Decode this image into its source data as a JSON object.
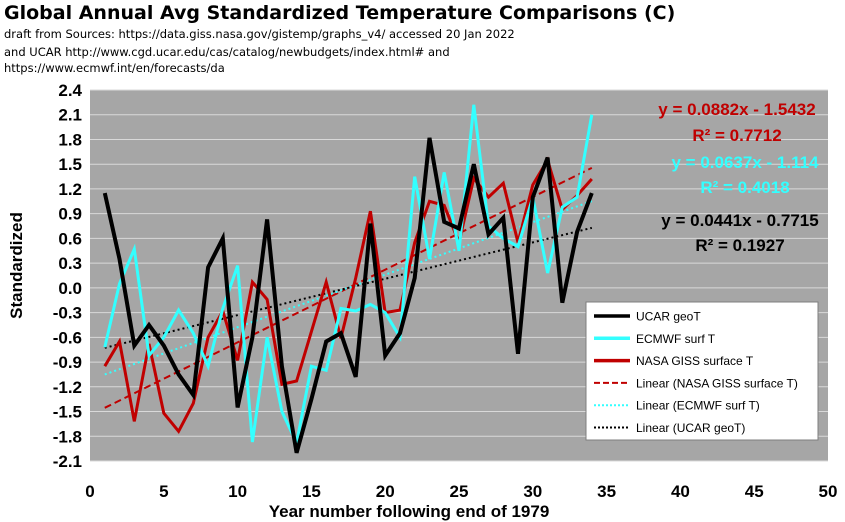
{
  "header": {
    "title": "Global Annual Avg Standardized Temperature Comparisons (C)",
    "source_line1": "draft from Sources: https://data.giss.nasa.gov/gistemp/graphs_v4/ accessed 20 Jan 2022",
    "source_line2": "and UCAR http://www.cgd.ucar.edu/cas/catalog/newbudgets/index.html#   and",
    "source_line3": "https://www.ecmwf.int/en/forecasts/da"
  },
  "colors": {
    "plot_bg": "#a6a6a6",
    "ucar": "#000000",
    "ecmwf": "#33ffff",
    "nasa": "#c00000"
  },
  "chart_data": {
    "type": "line",
    "xlabel": "Year number following end of 1979",
    "ylabel": "Standardized",
    "xlim": [
      0,
      50
    ],
    "ylim": [
      -2.1,
      2.4
    ],
    "xticks": [
      0,
      5,
      10,
      15,
      20,
      25,
      30,
      35,
      40,
      45,
      50
    ],
    "yticks": [
      -2.1,
      -1.8,
      -1.5,
      -1.2,
      -0.9,
      -0.6,
      -0.3,
      0.0,
      0.3,
      0.6,
      0.9,
      1.2,
      1.5,
      1.8,
      2.1,
      2.4
    ],
    "grid": "horizontal",
    "legend_position": "bottom-right",
    "x": [
      1,
      2,
      3,
      4,
      5,
      6,
      7,
      8,
      9,
      10,
      11,
      12,
      13,
      14,
      15,
      16,
      17,
      18,
      19,
      20,
      21,
      22,
      23,
      24,
      25,
      26,
      27,
      28,
      29,
      30,
      31,
      32,
      33,
      34
    ],
    "series": [
      {
        "name": "UCAR geoT",
        "color": "#000000",
        "values": [
          1.15,
          0.35,
          -0.7,
          -0.45,
          -0.7,
          -1.05,
          -1.3,
          0.25,
          0.6,
          -1.45,
          -0.6,
          0.83,
          -0.95,
          -2.0,
          -1.35,
          -0.65,
          -0.55,
          -1.08,
          0.78,
          -0.82,
          -0.55,
          0.12,
          1.82,
          0.8,
          0.72,
          1.5,
          0.65,
          0.85,
          -0.8,
          1.1,
          1.58,
          -0.18,
          0.68,
          1.15
        ]
      },
      {
        "name": "ECMWF surf T",
        "color": "#33ffff",
        "values": [
          -0.72,
          0.05,
          0.47,
          -0.82,
          -0.6,
          -0.27,
          -0.55,
          -0.95,
          -0.25,
          0.27,
          -1.87,
          -0.6,
          -1.5,
          -1.88,
          -0.95,
          -1.0,
          -0.25,
          -0.28,
          -0.2,
          -0.3,
          -0.6,
          1.35,
          0.35,
          1.4,
          0.45,
          2.22,
          0.75,
          0.6,
          0.5,
          1.1,
          0.18,
          0.98,
          1.1,
          2.1
        ]
      },
      {
        "name": "NASA GISS surface T",
        "color": "#c00000",
        "values": [
          -0.95,
          -0.65,
          -1.62,
          -0.68,
          -1.52,
          -1.74,
          -1.4,
          -0.6,
          -0.28,
          -0.88,
          0.07,
          -0.14,
          -1.17,
          -1.13,
          -0.53,
          0.07,
          -0.61,
          0.12,
          0.93,
          -0.3,
          -0.27,
          0.55,
          1.05,
          1.0,
          0.55,
          1.33,
          1.1,
          1.27,
          0.55,
          1.25,
          1.55,
          0.95,
          1.12,
          1.32
        ]
      }
    ],
    "trendlines": [
      {
        "name": "Linear (NASA GISS surface T)",
        "color": "#c00000",
        "style": "dashed",
        "slope": 0.0882,
        "intercept": -1.5432,
        "x_range": [
          1,
          34
        ],
        "equation": "y = 0.0882x - 1.5432",
        "r2": "R² = 0.7712"
      },
      {
        "name": "Linear (ECMWF surf T)",
        "color": "#33ffff",
        "style": "dotted",
        "slope": 0.0637,
        "intercept": -1.114,
        "x_range": [
          1,
          34
        ],
        "equation": "y = 0.0637x - 1.114",
        "r2": "R² = 0.4018"
      },
      {
        "name": "Linear (UCAR geoT)",
        "color": "#000000",
        "style": "dotted",
        "slope": 0.0441,
        "intercept": -0.7715,
        "x_range": [
          1,
          34
        ],
        "equation": "y = 0.0441x - 0.7715",
        "r2": "R² = 0.1927"
      }
    ]
  }
}
